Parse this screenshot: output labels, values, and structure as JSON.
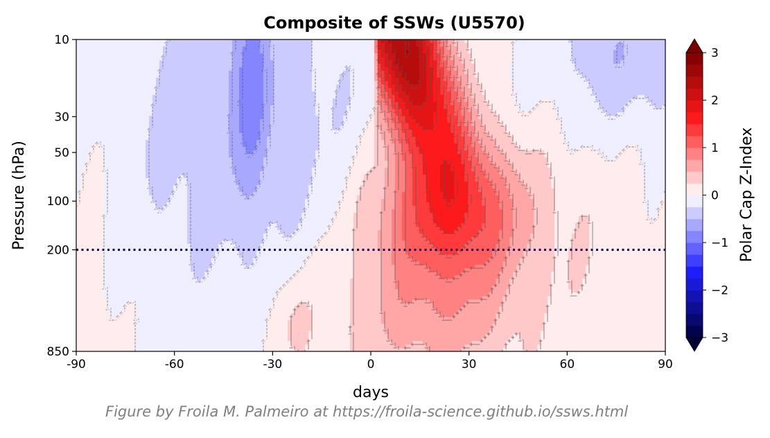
{
  "credit": "Figure by Froila M. Palmeiro at https://froila-science.github.io/ssws.html",
  "chart_data": {
    "type": "heatmap",
    "title": "Composite of SSWs (U5570)",
    "xlabel": "days",
    "ylabel": "Pressure (hPa)",
    "colorbar_label": "Polar Cap Z-Index",
    "xlim": [
      -90,
      90
    ],
    "ylim": [
      850,
      10
    ],
    "yscale": "log",
    "x_ticks": [
      -90,
      -60,
      -30,
      0,
      30,
      60,
      90
    ],
    "x_tick_labels": [
      "-90",
      "-60",
      "-30",
      "0",
      "30",
      "60",
      "90"
    ],
    "y_ticks": [
      10,
      30,
      50,
      100,
      200,
      850
    ],
    "y_tick_labels": [
      "10",
      "30",
      "50",
      "100",
      "200",
      "850"
    ],
    "colorbar_ticks": [
      3,
      2,
      1,
      0,
      -1,
      -2,
      -3
    ],
    "colorbar_tick_labels": [
      "3",
      "2",
      "1",
      "0",
      "−1",
      "−2",
      "−3"
    ],
    "colorbar_range": [
      -3,
      3
    ],
    "colorbar_extend": "both",
    "contour_levels": [
      -3,
      -2.75,
      -2.5,
      -2.25,
      -2,
      -1.75,
      -1.5,
      -1.25,
      -1,
      -0.75,
      -0.5,
      -0.25,
      0,
      0.25,
      0.5,
      0.75,
      1,
      1.25,
      1.5,
      1.75,
      2,
      2.25,
      2.5,
      2.75,
      3
    ],
    "reference_line": {
      "pressure": 200,
      "style": "dotted",
      "color": "#0b0b7a"
    },
    "colors": {
      "high": "#7a0000",
      "mid_high": "#ff1a1a",
      "zero": "#ffffff",
      "mid_low": "#1f1fff",
      "low": "#00003a",
      "contour": "#555555"
    }
  }
}
